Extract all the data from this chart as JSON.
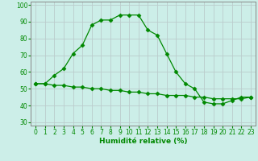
{
  "x": [
    0,
    1,
    2,
    3,
    4,
    5,
    6,
    7,
    8,
    9,
    10,
    11,
    12,
    13,
    14,
    15,
    16,
    17,
    18,
    19,
    20,
    21,
    22,
    23
  ],
  "y_upper": [
    53,
    53,
    58,
    62,
    71,
    76,
    88,
    91,
    91,
    94,
    94,
    94,
    85,
    82,
    71,
    60,
    53,
    50,
    42,
    41,
    41,
    43,
    45,
    45
  ],
  "y_lower": [
    53,
    53,
    52,
    52,
    51,
    51,
    50,
    50,
    49,
    49,
    48,
    48,
    47,
    47,
    46,
    46,
    46,
    45,
    45,
    44,
    44,
    44,
    44,
    45
  ],
  "line_color": "#008800",
  "marker": "D",
  "markersize": 2.5,
  "bg_color": "#cceee8",
  "grid_color": "#bbcccc",
  "xlabel": "Humidité relative (%)",
  "xlim": [
    -0.5,
    23.5
  ],
  "ylim": [
    28,
    102
  ],
  "yticks": [
    30,
    40,
    50,
    60,
    70,
    80,
    90,
    100
  ],
  "xticks": [
    0,
    1,
    2,
    3,
    4,
    5,
    6,
    7,
    8,
    9,
    10,
    11,
    12,
    13,
    14,
    15,
    16,
    17,
    18,
    19,
    20,
    21,
    22,
    23
  ],
  "xlabel_fontsize": 6.5,
  "tick_fontsize": 5.5
}
